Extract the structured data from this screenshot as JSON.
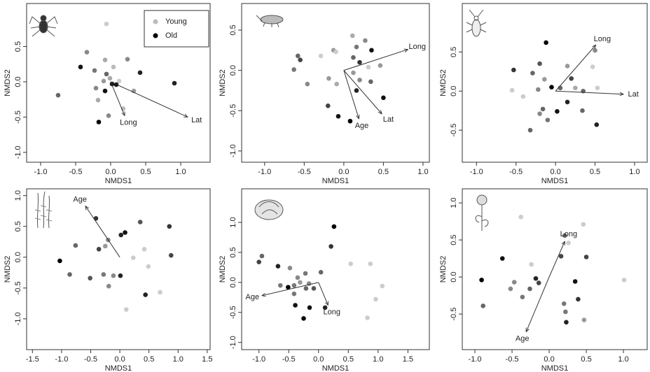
{
  "chart_data": [
    {
      "type": "scatter",
      "xlabel": "NMDS1",
      "ylabel": "NMDS2",
      "xlim": [
        -1.2,
        1.42
      ],
      "ylim": [
        -1.14,
        1.11
      ],
      "xticks": [
        {
          "value": -1,
          "label": "-1.0"
        },
        -0.5,
        {
          "value": 0,
          "label": "0.0"
        },
        0.5,
        {
          "value": 1,
          "label": "1.0"
        }
      ],
      "yticks": [
        {
          "value": -1,
          "label": "-1.0"
        },
        -0.5,
        {
          "value": 0,
          "label": "0.0"
        },
        0.5
      ],
      "legend": [
        {
          "name": "Young",
          "color": "#bbbbbb"
        },
        {
          "name": "Old",
          "color": "#000000"
        }
      ],
      "points": {
        "x": [
          -0.06,
          -0.34,
          -0.08,
          0.04,
          0.24,
          -0.43,
          -0.23,
          -0.06,
          -0.01,
          0.42,
          -0.1,
          0.12,
          0.91,
          -0.75,
          -0.21,
          -0.08,
          0.33,
          -0.18,
          -0.03,
          0.18,
          -0.17,
          0.08,
          0.02
        ],
        "y": [
          0.82,
          0.42,
          0.31,
          0.21,
          0.32,
          0.21,
          0.16,
          0.11,
          0.05,
          0.13,
          0.01,
          0.01,
          -0.02,
          -0.19,
          -0.09,
          -0.13,
          -0.13,
          -0.26,
          -0.48,
          -0.38,
          -0.57,
          -0.04,
          -0.03
        ],
        "colors": [
          "#cccccc",
          "#888888",
          "#aaaaaa",
          "#bbbbbb",
          "#888888",
          "#111111",
          "#777777",
          "#666666",
          "#aaaaaa",
          "#222222",
          "#999999",
          "#cccccc",
          "#222222",
          "#666666",
          "#888888",
          "#111111",
          "#999999",
          "#aaaaaa",
          "#888888",
          "#bbbbbb",
          "#000000",
          "#111111",
          "#111111"
        ]
      },
      "vectors": [
        {
          "label": "Long",
          "x": 0.2,
          "y": -0.48
        },
        {
          "label": "Lat",
          "x": 1.1,
          "y": -0.5
        }
      ]
    },
    {
      "type": "scatter",
      "xlabel": "NMDS1",
      "ylabel": "NMDS2",
      "xlim": [
        -1.29,
        1.08
      ],
      "ylim": [
        -1.14,
        0.83
      ],
      "xticks": [
        {
          "value": -1,
          "label": "-1.0"
        },
        -0.5,
        {
          "value": 0,
          "label": "0.0"
        },
        0.5,
        {
          "value": 1,
          "label": "1.0"
        }
      ],
      "yticks": [
        {
          "value": -1,
          "label": "-1.0"
        },
        -0.5,
        {
          "value": 0,
          "label": "0.0"
        },
        0.5
      ],
      "points": {
        "x": [
          0.11,
          0.27,
          0.35,
          0.16,
          -0.13,
          -0.29,
          -0.58,
          -0.55,
          -0.1,
          0.12,
          0.2,
          0.31,
          0.46,
          -0.63,
          0.12,
          0.2,
          -0.46,
          -0.19,
          -0.09,
          0.16,
          0.34,
          0.5,
          -0.2,
          -0.07,
          0.08
        ],
        "y": [
          0.43,
          0.37,
          0.25,
          0.29,
          0.25,
          0.18,
          0.18,
          0.13,
          0.23,
          0.16,
          0.1,
          0.04,
          0.06,
          0.01,
          -0.03,
          -0.12,
          -0.17,
          -0.1,
          -0.17,
          -0.25,
          -0.14,
          -0.34,
          -0.44,
          -0.57,
          -0.63
        ],
        "colors": [
          "#aaaaaa",
          "#888888",
          "#111111",
          "#777777",
          "#999999",
          "#cccccc",
          "#666666",
          "#444444",
          "#cccccc",
          "#666666",
          "#333333",
          "#cccccc",
          "#999999",
          "#777777",
          "#999999",
          "#888888",
          "#888888",
          "#999999",
          "#aaaaaa",
          "#222222",
          "#666666",
          "#111111",
          "#444444",
          "#111111",
          "#000000"
        ]
      },
      "vectors": [
        {
          "label": "Long",
          "x": 0.81,
          "y": 0.26
        },
        {
          "label": "Age",
          "x": 0.19,
          "y": -0.6
        },
        {
          "label": "Lat",
          "x": 0.48,
          "y": -0.54
        }
      ]
    },
    {
      "type": "scatter",
      "xlabel": "NMDS1",
      "ylabel": "NMDS2",
      "xlim": [
        -1.18,
        1.16
      ],
      "ylim": [
        -0.91,
        1.12
      ],
      "xticks": [
        {
          "value": -1,
          "label": "-1.0"
        },
        -0.5,
        {
          "value": 0,
          "label": "0.0"
        },
        0.5,
        {
          "value": 1,
          "label": "1.0"
        }
      ],
      "yticks": [
        -0.5,
        {
          "value": 0,
          "label": "0.0"
        },
        0.5
      ],
      "points": {
        "x": [
          -0.12,
          -0.2,
          0.5,
          0.47,
          0.15,
          -0.29,
          -0.53,
          -0.14,
          -0.05,
          0.2,
          0.06,
          0.25,
          0.35,
          0.53,
          -0.22,
          -0.55,
          -0.41,
          0.15,
          0.02,
          -0.16,
          -0.2,
          -0.1,
          -0.32,
          0.34,
          0.52
        ],
        "y": [
          0.62,
          0.35,
          0.52,
          0.31,
          0.32,
          0.23,
          0.27,
          0.15,
          0.05,
          0.16,
          0.04,
          0.04,
          0,
          0.04,
          0.02,
          0.01,
          -0.07,
          -0.14,
          -0.26,
          -0.23,
          -0.29,
          -0.37,
          -0.5,
          -0.25,
          -0.43
        ],
        "colors": [
          "#000000",
          "#555555",
          "#888888",
          "#cccccc",
          "#999999",
          "#666666",
          "#333333",
          "#999999",
          "#000000",
          "#444444",
          "#666666",
          "#aaaaaa",
          "#666666",
          "#cccccc",
          "#888888",
          "#cccccc",
          "#cccccc",
          "#222222",
          "#111111",
          "#666666",
          "#888888",
          "#777777",
          "#666666",
          "#666666",
          "#222222"
        ]
      },
      "vectors": [
        {
          "label": "Long",
          "x": 0.51,
          "y": 0.59
        },
        {
          "label": "Lat",
          "x": 0.86,
          "y": -0.04
        }
      ]
    },
    {
      "type": "scatter",
      "xlabel": "NMDS1",
      "ylabel": "NMDS2",
      "xlim": [
        -1.6,
        1.55
      ],
      "ylim": [
        -1.5,
        1.11
      ],
      "xticks": [
        -1.5,
        {
          "value": -1,
          "label": "-1.0"
        },
        -0.5,
        {
          "value": 0,
          "label": "0.0"
        },
        0.5,
        {
          "value": 1,
          "label": "1.0"
        },
        1.5
      ],
      "yticks": [
        {
          "value": -1,
          "label": "-1.0"
        },
        -0.5,
        {
          "value": 0,
          "label": "0.0"
        },
        0.5,
        {
          "value": 1,
          "label": "1.0"
        }
      ],
      "points": {
        "x": [
          -0.41,
          0.35,
          0.85,
          0.09,
          0.02,
          -0.2,
          -0.76,
          -0.25,
          -0.36,
          0.42,
          0.88,
          -1.03,
          0.23,
          0.49,
          -0.86,
          -0.51,
          -0.28,
          -0.11,
          0.01,
          -0.19,
          0.69,
          0.44,
          0.11
        ],
        "y": [
          0.63,
          0.57,
          0.5,
          0.4,
          0.36,
          0.28,
          0.19,
          0.18,
          0.13,
          0.13,
          0.03,
          -0.06,
          -0.01,
          -0.15,
          -0.28,
          -0.34,
          -0.28,
          -0.3,
          -0.3,
          -0.47,
          -0.57,
          -0.61,
          -0.85
        ],
        "colors": [
          "#333333",
          "#555555",
          "#333333",
          "#111111",
          "#222222",
          "#888888",
          "#666666",
          "#999999",
          "#444444",
          "#cccccc",
          "#444444",
          "#000000",
          "#cccccc",
          "#cccccc",
          "#666666",
          "#555555",
          "#777777",
          "#888888",
          "#222222",
          "#888888",
          "#cccccc",
          "#222222",
          "#cccccc"
        ]
      },
      "vectors": [
        {
          "label": "Age",
          "x": -0.59,
          "y": 0.83
        }
      ]
    },
    {
      "type": "scatter",
      "xlabel": "NMDS1",
      "ylabel": "NMDS2",
      "xlim": [
        -1.29,
        1.86
      ],
      "ylim": [
        -1.12,
        1.56
      ],
      "xticks": [
        {
          "value": -1,
          "label": "-1.0"
        },
        -0.5,
        {
          "value": 0,
          "label": "0.0"
        },
        0.5,
        {
          "value": 1,
          "label": "1.0"
        },
        1.5
      ],
      "yticks": [
        {
          "value": -1,
          "label": "-1.0"
        },
        -0.5,
        {
          "value": 0,
          "label": "0.0"
        },
        0.5,
        {
          "value": 1,
          "label": "1.0"
        }
      ],
      "points": {
        "x": [
          0.26,
          0.21,
          -0.95,
          -1,
          0.87,
          0.54,
          -0.68,
          -0.48,
          -0.22,
          0.04,
          -0.35,
          -0.64,
          -0.41,
          -0.31,
          -0.16,
          -0.51,
          -0.21,
          -0.08,
          1.07,
          -0.41,
          0.96,
          -0.39,
          -0.15,
          0.11,
          -0.25,
          0.82
        ],
        "y": [
          0.93,
          0.6,
          0.44,
          0.34,
          0.31,
          0.31,
          0.27,
          0.24,
          0.15,
          0.17,
          0.08,
          -0.05,
          -0.05,
          0,
          -0.02,
          -0.08,
          -0.1,
          -0.1,
          -0.06,
          -0.19,
          -0.28,
          -0.38,
          -0.42,
          -0.42,
          -0.6,
          -0.59
        ],
        "colors": [
          "#000000",
          "#333333",
          "#666666",
          "#444444",
          "#cccccc",
          "#cccccc",
          "#222222",
          "#888888",
          "#777777",
          "#666666",
          "#888888",
          "#777777",
          "#777777",
          "#999999",
          "#888888",
          "#000000",
          "#666666",
          "#555555",
          "#cccccc",
          "#777777",
          "#cccccc",
          "#111111",
          "#111111",
          "#222222",
          "#000000",
          "#cccccc"
        ]
      },
      "vectors": [
        {
          "label": "Age",
          "x": -0.95,
          "y": -0.22
        },
        {
          "label": "Long",
          "x": 0.16,
          "y": -0.38
        }
      ]
    },
    {
      "type": "scatter",
      "xlabel": "NMDS1",
      "ylabel": "NMDS2",
      "xlim": [
        -1.17,
        1.32
      ],
      "ylim": [
        -0.98,
        1.19
      ],
      "xticks": [
        {
          "value": -1,
          "label": "-1.0"
        },
        -0.5,
        {
          "value": 0,
          "label": "0.0"
        },
        0.5,
        {
          "value": 1,
          "label": "1.0"
        }
      ],
      "yticks": [
        -0.5,
        {
          "value": 0,
          "label": "0.0"
        },
        0.5,
        {
          "value": 1,
          "label": "1.0"
        }
      ],
      "points": {
        "x": [
          -0.38,
          0.46,
          0.21,
          0.26,
          -0.63,
          0.16,
          0.5,
          -0.24,
          -0.91,
          -0.47,
          -0.18,
          0.35,
          1.01,
          -0.14,
          -0.52,
          -0.26,
          -0.36,
          0.2,
          0.39,
          -0.89,
          0.22,
          0.47,
          0.23
        ],
        "y": [
          0.81,
          0.71,
          0.56,
          0.46,
          0.25,
          0.28,
          0.27,
          0.17,
          -0.04,
          -0.07,
          -0.02,
          -0.06,
          -0.04,
          -0.08,
          -0.16,
          -0.16,
          -0.27,
          -0.36,
          -0.3,
          -0.39,
          -0.47,
          -0.58,
          -0.61
        ],
        "colors": [
          "#cccccc",
          "#cccccc",
          "#666666",
          "#cccccc",
          "#111111",
          "#444444",
          "#444444",
          "#cccccc",
          "#000000",
          "#888888",
          "#222222",
          "#111111",
          "#cccccc",
          "#444444",
          "#888888",
          "#666666",
          "#777777",
          "#777777",
          "#333333",
          "#666666",
          "#777777",
          "#999999",
          "#222222"
        ]
      },
      "vectors": [
        {
          "label": "Long",
          "x": 0.21,
          "y": 0.48
        },
        {
          "label": "Age",
          "x": -0.31,
          "y": -0.74
        }
      ]
    }
  ]
}
